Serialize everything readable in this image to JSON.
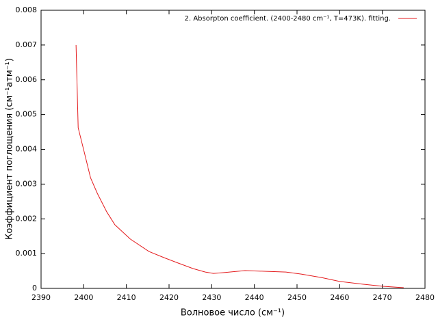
{
  "chart_data": {
    "type": "line",
    "xlabel": "Волновое число (см⁻¹)",
    "ylabel": "Коэффициент поглощения (см⁻¹атм⁻¹)",
    "x": [
      2398.2,
      2398.7,
      2400.1,
      2401.6,
      2403.2,
      2405.4,
      2407.3,
      2410.9,
      2415.3,
      2418.9,
      2422.1,
      2425.6,
      2428.5,
      2430.4,
      2432.5,
      2437.8,
      2442.9,
      2447.4,
      2451.0,
      2455.8,
      2460.0,
      2465.4,
      2470.2,
      2475.0
    ],
    "series": [
      {
        "name": "2. Absorpton coefficient. (2400-2480 cm⁻¹, T=473K). fitting.",
        "color": "#e41a1c",
        "values": [
          0.007,
          0.00462,
          0.00393,
          0.00318,
          0.00273,
          0.0022,
          0.00183,
          0.00142,
          0.00106,
          0.00088,
          0.00073,
          0.00057,
          0.00047,
          0.00043,
          0.00045,
          0.00051,
          0.00049,
          0.00047,
          0.00041,
          0.00031,
          0.0002,
          0.00012,
          6e-05,
          2e-05
        ]
      }
    ],
    "xlim": [
      2390,
      2480
    ],
    "xticks": [
      2390,
      2400,
      2410,
      2420,
      2430,
      2440,
      2450,
      2460,
      2470,
      2480
    ],
    "ylim": [
      0,
      0.008
    ],
    "yticks": [
      0,
      0.001,
      0.002,
      0.003,
      0.004,
      0.005,
      0.006,
      0.007,
      0.008
    ],
    "legend": "top-right"
  }
}
